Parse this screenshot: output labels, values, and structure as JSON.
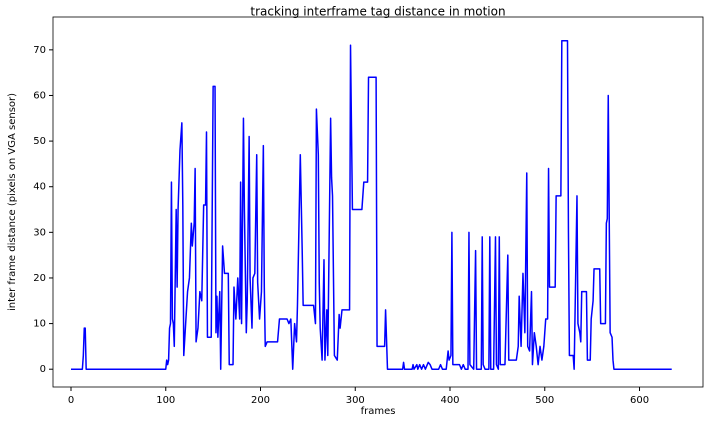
{
  "chart_data": {
    "type": "line",
    "title": "tracking interframe tag distance in motion",
    "x_label": "frames",
    "y_label": "inter frame distance (pixels on VGA sensor)",
    "color": "#0000ff",
    "x": [
      0,
      12,
      13,
      14,
      15,
      16,
      100,
      101,
      102,
      103,
      104,
      105,
      106,
      107,
      108,
      109,
      111,
      112,
      113,
      115,
      117,
      118,
      119,
      121,
      123,
      125,
      127,
      128,
      130,
      131,
      132,
      134,
      136,
      138,
      140,
      142,
      143,
      144,
      148,
      150,
      152,
      153,
      154,
      155,
      157,
      158,
      160,
      162,
      166,
      167,
      171,
      172,
      174,
      176,
      178,
      179,
      180,
      182,
      183,
      185,
      186,
      188,
      189,
      191,
      192,
      194,
      196,
      197,
      199,
      201,
      203,
      204,
      205,
      207,
      209,
      218,
      220,
      228,
      230,
      232,
      234,
      236,
      238,
      239,
      242,
      244,
      245,
      256,
      258,
      259,
      261,
      262,
      263,
      265,
      267,
      268,
      270,
      271,
      274,
      275,
      276,
      278,
      281,
      283,
      284,
      286,
      294,
      295,
      297,
      307,
      309,
      313,
      314,
      322,
      323,
      331,
      332,
      334,
      350,
      351,
      352,
      360,
      361,
      362,
      365,
      366,
      368,
      370,
      372,
      374,
      377,
      379,
      381,
      388,
      390,
      392,
      396,
      398,
      399,
      401,
      402,
      403,
      410,
      412,
      414,
      416,
      419,
      420,
      421,
      425,
      427,
      428,
      433,
      434,
      435,
      437,
      441,
      442,
      443,
      446,
      448,
      449,
      451,
      452,
      453,
      458,
      461,
      462,
      470,
      472,
      473,
      475,
      477,
      479,
      481,
      482,
      484,
      486,
      487,
      489,
      491,
      493,
      495,
      497,
      499,
      501,
      503,
      504,
      505,
      511,
      512,
      517,
      518,
      524,
      525,
      526,
      530,
      531,
      534,
      535,
      537,
      538,
      539,
      544,
      545,
      548,
      549,
      551,
      552,
      558,
      559,
      564,
      565,
      566,
      567,
      569,
      571,
      572,
      573,
      634
    ],
    "values": [
      0,
      0,
      3,
      9,
      9,
      0,
      0,
      2,
      1,
      2,
      9,
      10,
      41,
      11,
      10,
      5,
      35,
      18,
      35,
      48,
      54,
      36,
      3,
      10,
      17,
      20,
      32,
      27,
      32,
      44,
      6,
      9,
      17,
      15,
      36,
      36,
      52,
      7,
      7,
      62,
      62,
      8,
      16,
      7,
      17,
      0,
      27,
      21,
      21,
      1,
      1,
      18,
      11,
      20,
      11,
      41,
      10,
      55,
      35,
      8,
      15,
      51,
      20,
      9,
      20,
      21,
      47,
      19,
      11,
      17,
      49,
      18,
      5,
      6,
      6,
      6,
      11,
      11,
      10,
      11,
      0,
      10,
      6,
      14,
      47,
      26,
      14,
      14,
      10,
      57,
      47,
      19,
      9,
      2,
      24,
      2,
      13,
      3,
      55,
      42,
      38,
      3,
      2,
      12,
      9,
      13,
      13,
      71,
      35,
      35,
      41,
      41,
      64,
      64,
      5,
      5,
      13,
      0,
      0,
      1.5,
      0,
      0,
      1,
      0,
      1,
      0,
      1,
      0,
      1,
      0,
      1.5,
      1,
      0,
      0,
      1,
      0,
      0,
      4,
      2,
      3,
      30,
      1,
      1,
      0,
      1,
      0,
      0,
      30,
      1,
      0,
      26,
      0,
      0,
      29,
      1,
      0,
      0,
      29,
      0,
      0,
      29,
      1,
      0,
      29,
      1,
      1,
      25,
      2,
      2,
      5,
      16,
      5,
      21,
      8,
      43,
      5,
      4,
      17,
      1,
      8,
      5,
      1,
      5,
      2,
      5,
      11,
      11,
      44,
      18,
      18,
      38,
      38,
      72,
      72,
      30,
      3,
      3,
      0,
      38,
      10,
      8,
      6,
      17,
      17,
      2,
      2,
      11,
      15,
      22,
      22,
      10,
      10,
      32,
      33,
      60,
      8,
      7,
      2,
      0,
      0
    ],
    "xlim": [
      -19,
      667
    ],
    "ylim": [
      -3.9,
      77.2
    ],
    "xticks": [
      0,
      100,
      200,
      300,
      400,
      500,
      600
    ],
    "yticks": [
      0,
      10,
      20,
      30,
      40,
      50,
      60,
      70
    ]
  }
}
